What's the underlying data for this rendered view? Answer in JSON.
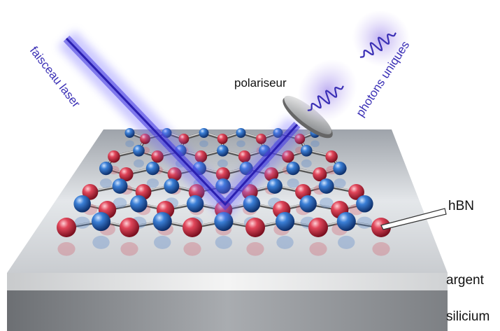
{
  "labels": {
    "laser": "faisceau laser",
    "polarizer": "polariseur",
    "photons": "photons uniques",
    "material": "hBN",
    "silver": "argent",
    "silicon": "silicium"
  }
}
